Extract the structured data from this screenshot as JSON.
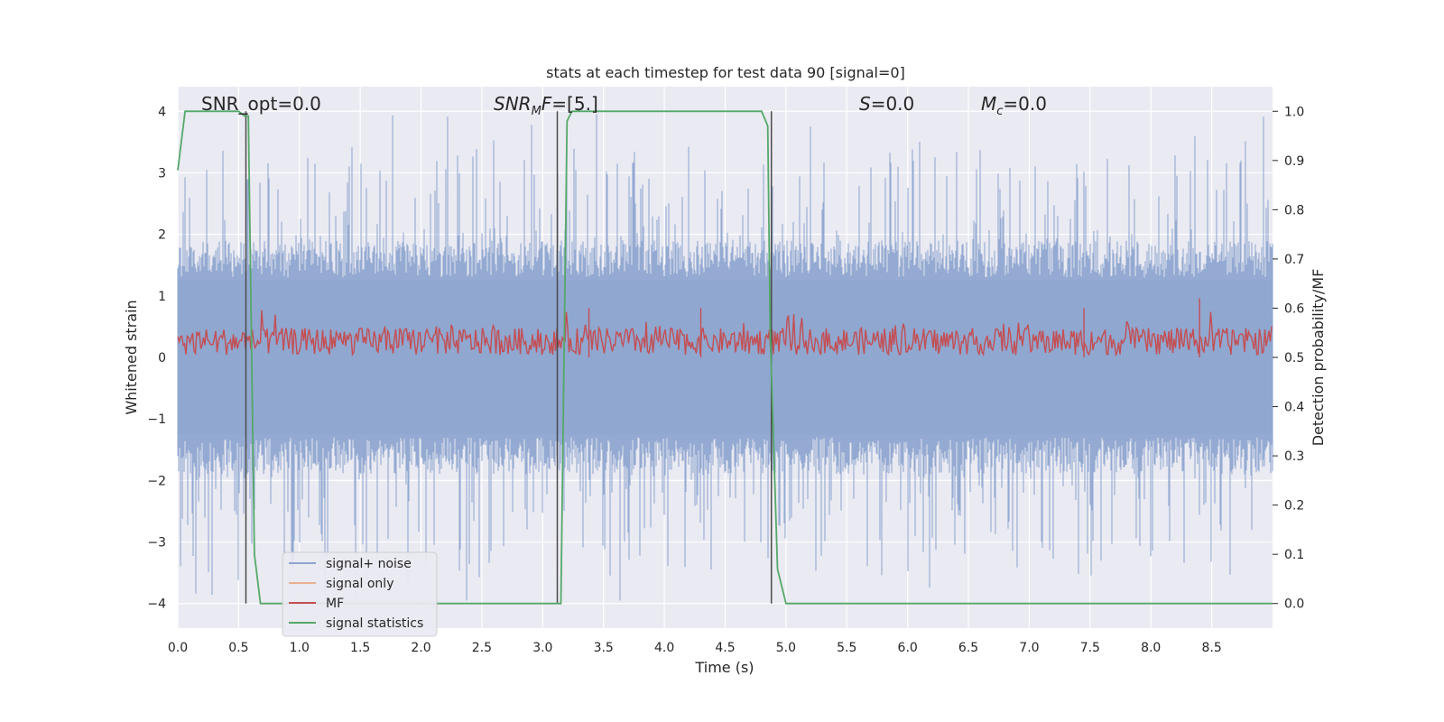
{
  "chart_data": {
    "type": "line",
    "title": "stats at each timestep for test data 90 [signal=0]",
    "xlabel": "Time (s)",
    "ylabel": "Whitened strain",
    "ylabel_right": "Detection probability/MF",
    "xlim": [
      0,
      9.0
    ],
    "ylim": [
      -4.4,
      4.4
    ],
    "ylim_right": [
      -0.05,
      1.05
    ],
    "x_ticks": [
      "0.0",
      "0.5",
      "1.0",
      "1.5",
      "2.0",
      "2.5",
      "3.0",
      "3.5",
      "4.0",
      "4.5",
      "5.0",
      "5.5",
      "6.0",
      "6.5",
      "7.0",
      "7.5",
      "8.0",
      "8.5"
    ],
    "y_ticks": [
      "4",
      "3",
      "2",
      "1",
      "0",
      "−1",
      "−2",
      "−3",
      "−4"
    ],
    "y_right_ticks": [
      "1.0",
      "0.9",
      "0.8",
      "0.7",
      "0.6",
      "0.5",
      "0.4",
      "0.3",
      "0.2",
      "0.1",
      "0.0"
    ],
    "grid": true,
    "legend_position": "lower-left",
    "annotations": [
      {
        "text": "SNR_opt=0.0",
        "x": 0.2
      },
      {
        "text": "SNR_MF=[5.]",
        "x": 2.6
      },
      {
        "text": "S=0.0",
        "x": 5.6
      },
      {
        "text": "M_c=0.0",
        "x": 6.6
      }
    ],
    "series": [
      {
        "name": "signal+ noise",
        "color": "#8fa6d0",
        "kind": "noise",
        "amplitude_typical": 1.6,
        "amplitude_max": 4.0
      },
      {
        "name": "signal only",
        "color": "#eab091",
        "kind": "flat",
        "values": 0
      },
      {
        "name": "MF",
        "color": "#c44e52",
        "kind": "noise_right_axis",
        "baseline": 0.5,
        "peak_max": 0.62
      },
      {
        "name": "signal statistics",
        "color": "#55a868",
        "kind": "line_right_axis",
        "x": [
          0.0,
          0.06,
          0.5,
          0.55,
          0.58,
          0.63,
          0.68,
          0.7,
          3.1,
          3.15,
          3.2,
          3.24,
          4.8,
          4.85,
          4.87,
          4.93,
          5.0,
          9.0
        ],
        "values": [
          0.88,
          1.0,
          1.0,
          0.99,
          0.99,
          0.1,
          0.0,
          0.0,
          0.0,
          0.0,
          0.98,
          1.0,
          1.0,
          0.97,
          0.55,
          0.07,
          0.0,
          0.0
        ]
      }
    ],
    "vertical_markers_x": [
      0.56,
      3.12,
      4.88
    ]
  },
  "legend": {
    "items": [
      {
        "label": "signal+ noise",
        "color": "#8fa6d0"
      },
      {
        "label": "signal only",
        "color": "#eab091"
      },
      {
        "label": "MF",
        "color": "#c44e52"
      },
      {
        "label": "signal statistics",
        "color": "#55a868"
      }
    ]
  }
}
